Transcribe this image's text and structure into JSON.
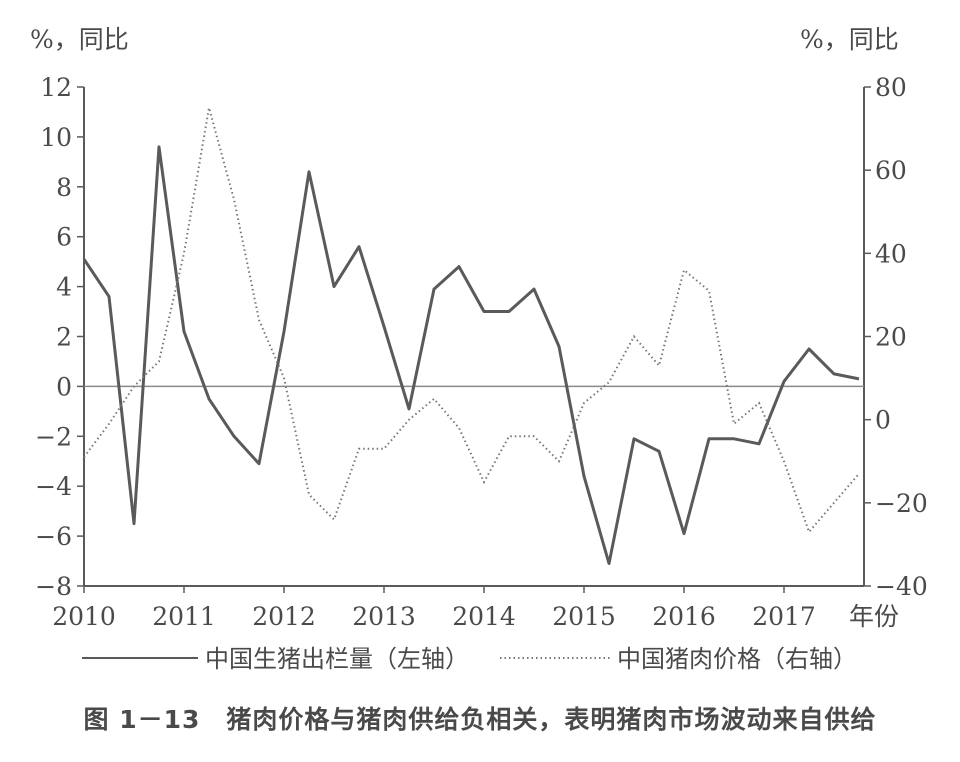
{
  "chart_data": {
    "type": "line",
    "left_axis_unit": "%，同比",
    "right_axis_unit": "%，同比",
    "x_axis_unit": "年份",
    "x_ticks": [
      "2010",
      "2011",
      "2012",
      "2013",
      "2014",
      "2015",
      "2016",
      "2017"
    ],
    "left_ylim": [
      -8,
      12
    ],
    "left_yticks": [
      "12",
      "10",
      "8",
      "6",
      "4",
      "2",
      "0",
      "−2",
      "−4",
      "−6",
      "−8"
    ],
    "right_ylim": [
      -40,
      80
    ],
    "right_yticks": [
      "80",
      "60",
      "40",
      "20",
      "0",
      "−20",
      "−40"
    ],
    "grid": false,
    "legend_position": "bottom",
    "series": [
      {
        "name": "中国生猪出栏量（左轴）",
        "axis": "left",
        "style": "solid",
        "x": [
          2010.0,
          2010.25,
          2010.5,
          2010.75,
          2011.0,
          2011.25,
          2011.5,
          2011.75,
          2012.0,
          2012.25,
          2012.5,
          2012.75,
          2013.0,
          2013.25,
          2013.5,
          2013.75,
          2014.0,
          2014.25,
          2014.5,
          2014.75,
          2015.0,
          2015.25,
          2015.5,
          2015.75,
          2016.0,
          2016.25,
          2016.5,
          2016.75,
          2017.0,
          2017.25,
          2017.5,
          2017.75
        ],
        "values": [
          5.1,
          3.6,
          -5.5,
          9.6,
          2.2,
          -0.5,
          -2.0,
          -3.1,
          2.2,
          8.6,
          4.0,
          5.6,
          2.4,
          -0.9,
          3.9,
          4.8,
          3.0,
          3.0,
          3.9,
          1.6,
          -3.6,
          -7.1,
          -2.1,
          -2.6,
          -5.9,
          -2.1,
          -2.1,
          -2.3,
          0.2,
          1.5,
          0.5,
          0.3
        ]
      },
      {
        "name": "中国猪肉价格（右轴）",
        "axis": "right",
        "style": "dotted",
        "x": [
          2010.0,
          2010.25,
          2010.5,
          2010.75,
          2011.0,
          2011.25,
          2011.5,
          2011.75,
          2012.0,
          2012.25,
          2012.5,
          2012.75,
          2013.0,
          2013.25,
          2013.5,
          2013.75,
          2014.0,
          2014.25,
          2014.5,
          2014.75,
          2015.0,
          2015.25,
          2015.5,
          2015.75,
          2016.0,
          2016.25,
          2016.5,
          2016.75,
          2017.0,
          2017.25,
          2017.5,
          2017.75
        ],
        "values": [
          -9,
          -1,
          8,
          14,
          40,
          75,
          53,
          24,
          10,
          -18,
          -24,
          -7,
          -7,
          0,
          5,
          -2,
          -15,
          -4,
          -4,
          -10,
          4,
          9,
          20,
          13,
          36,
          31,
          -1,
          4,
          -10,
          -27,
          -20,
          -13
        ]
      }
    ]
  },
  "caption": "图 1－13　猪肉价格与猪肉供给负相关，表明猪肉市场波动来自供给"
}
